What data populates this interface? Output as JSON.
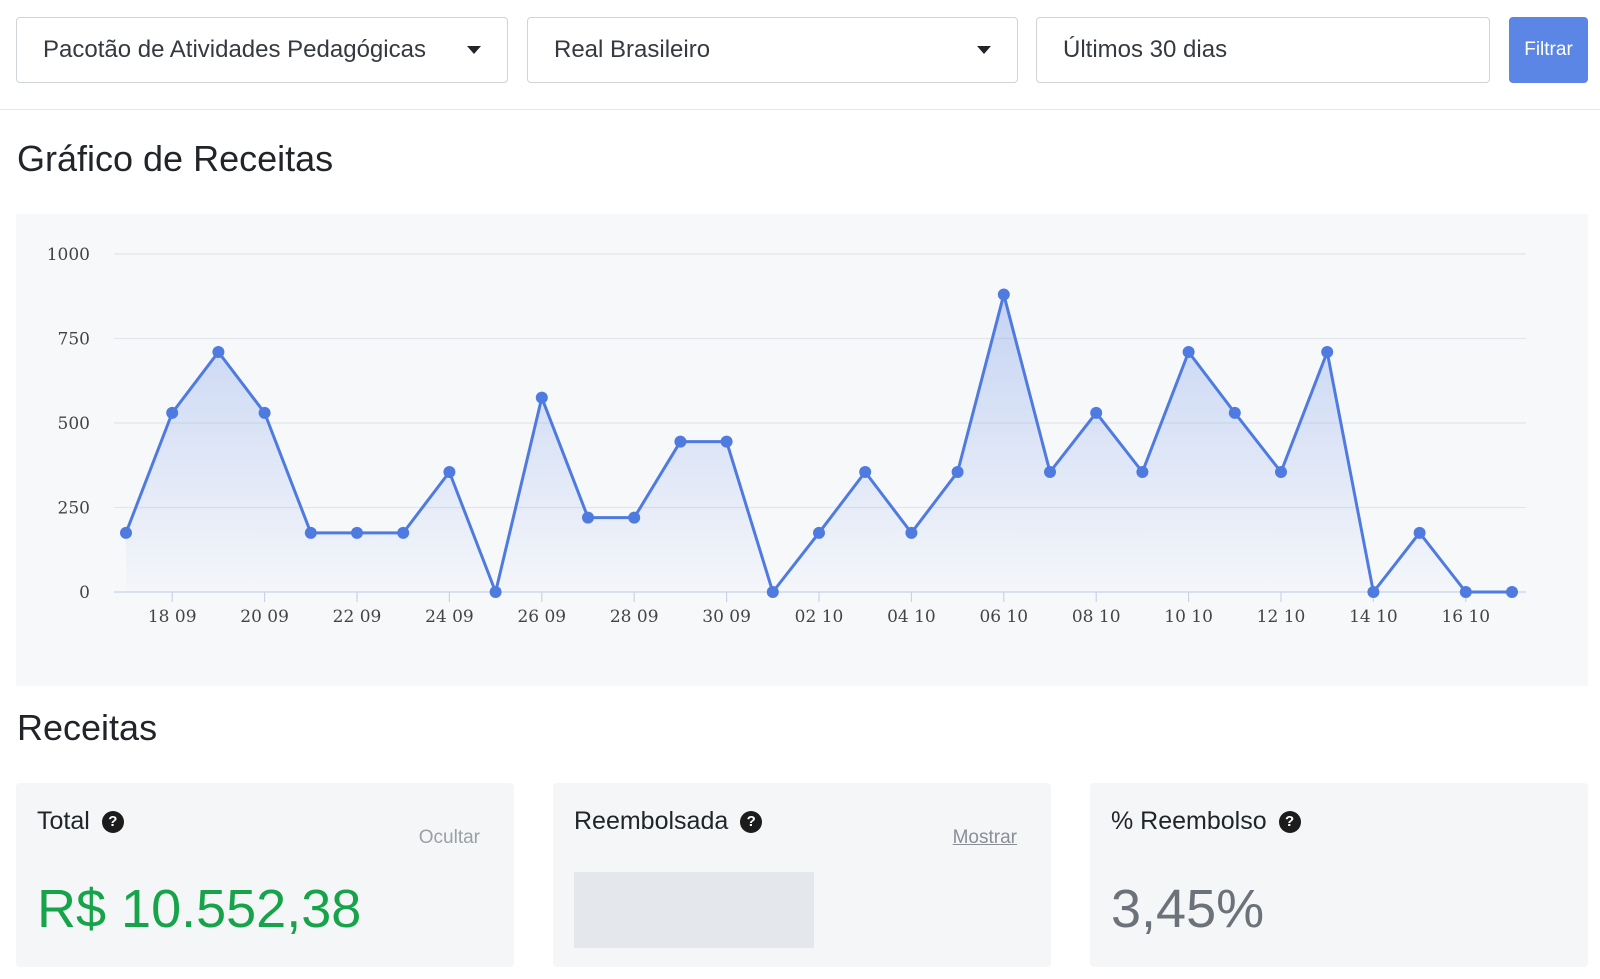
{
  "filters": {
    "product": "Pacotão de Atividades Pedagógicas",
    "currency": "Real Brasileiro",
    "period": "Últimos 30 dias",
    "filter_button": "Filtrar"
  },
  "chart_section": {
    "title": "Gráfico de Receitas"
  },
  "revenues_section": {
    "title": "Receitas"
  },
  "cards": {
    "total": {
      "label": "Total",
      "toggle": "Ocultar",
      "value": "R$ 10.552,38"
    },
    "refunded": {
      "label": "Reembolsada",
      "toggle": "Mostrar"
    },
    "percent": {
      "label": "% Reembolso",
      "value": "3,45%"
    }
  },
  "colors": {
    "accent": "#5b86e5",
    "positive": "#16a34a",
    "line": "#4f7be0"
  },
  "chart_data": {
    "type": "area",
    "x": [
      "17 09",
      "18 09",
      "19 09",
      "20 09",
      "21 09",
      "22 09",
      "23 09",
      "24 09",
      "25 09",
      "26 09",
      "27 09",
      "28 09",
      "29 09",
      "30 09",
      "01 10",
      "02 10",
      "03 10",
      "04 10",
      "05 10",
      "06 10",
      "07 10",
      "08 10",
      "09 10",
      "10 10",
      "11 10",
      "12 10",
      "13 10",
      "14 10",
      "15 10",
      "16 10",
      "17 10"
    ],
    "x_tick_labels": [
      "18 09",
      "20 09",
      "22 09",
      "24 09",
      "26 09",
      "28 09",
      "30 09",
      "02 10",
      "04 10",
      "06 10",
      "08 10",
      "10 10",
      "12 10",
      "14 10",
      "16 10"
    ],
    "values": [
      175,
      530,
      710,
      530,
      175,
      175,
      175,
      355,
      0,
      575,
      220,
      220,
      445,
      445,
      0,
      175,
      355,
      175,
      355,
      880,
      355,
      530,
      355,
      710,
      530,
      355,
      710,
      0,
      175,
      0,
      0
    ],
    "y_ticks": [
      0,
      250,
      500,
      750,
      1000
    ],
    "ylim": [
      0,
      1000
    ],
    "grid": true
  }
}
